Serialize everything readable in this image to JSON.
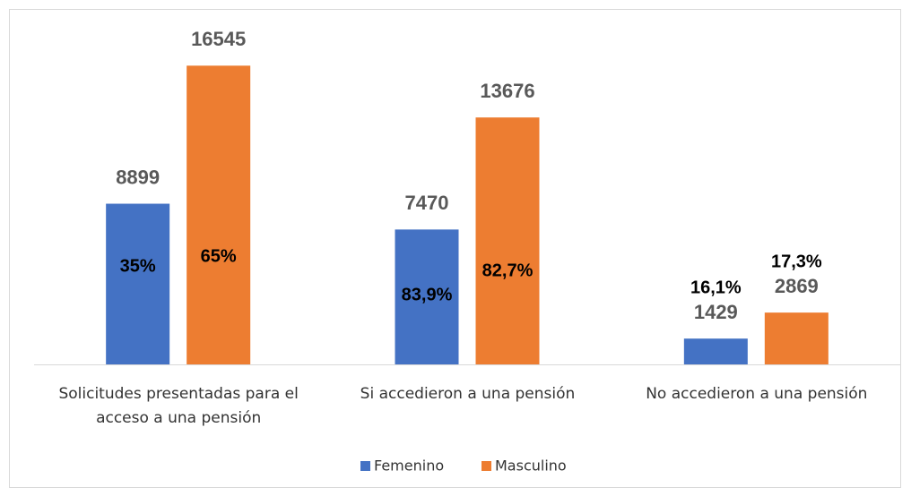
{
  "chart_data": {
    "type": "bar",
    "categories": [
      "Solicitudes presentadas para el acceso a una pensión",
      "Si accedieron a una pensión",
      "No accedieron a una pensión"
    ],
    "series": [
      {
        "name": "Femenino",
        "color": "#4472c4",
        "values": [
          8899,
          7470,
          1429
        ],
        "percent_labels": [
          "35%",
          "83,9%",
          "16,1%"
        ]
      },
      {
        "name": "Masculino",
        "color": "#ed7d31",
        "values": [
          16545,
          13676,
          2869
        ],
        "percent_labels": [
          "65%",
          "82,7%",
          "17,3%"
        ]
      }
    ],
    "ylim": [
      0,
      18000
    ],
    "legend": "bottom"
  }
}
